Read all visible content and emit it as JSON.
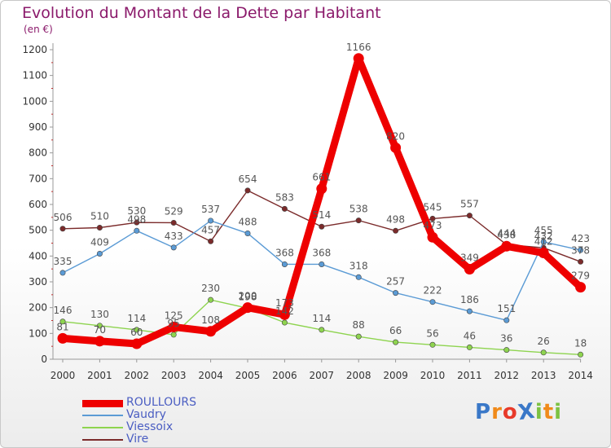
{
  "chart_data": {
    "type": "line",
    "title": "Evolution du Montant de la Dette par Habitant",
    "subtitle": "(en €)",
    "xlabel": "",
    "ylabel": "",
    "x": [
      "2000",
      "2001",
      "2002",
      "2003",
      "2004",
      "2005",
      "2006",
      "2007",
      "2008",
      "2009",
      "2010",
      "2011",
      "2012",
      "2013",
      "2014"
    ],
    "ylim": [
      0,
      1200
    ],
    "yticks": [
      0,
      100,
      200,
      300,
      400,
      500,
      600,
      700,
      800,
      900,
      1000,
      1100,
      1200
    ],
    "grid": false,
    "legend_position": "bottom-left",
    "series": [
      {
        "name": "ROULLOURS",
        "color": "#ee0000",
        "values": [
          81,
          70,
          60,
          125,
          108,
          200,
          173,
          661,
          1166,
          820,
          473,
          349,
          438,
          412,
          279
        ]
      },
      {
        "name": "Vaudry",
        "color": "#5b9bd5",
        "values": [
          335,
          409,
          498,
          433,
          537,
          488,
          368,
          368,
          318,
          257,
          222,
          186,
          151,
          455,
          423
        ]
      },
      {
        "name": "Viessoix",
        "color": "#8ed44f",
        "values": [
          146,
          130,
          114,
          95,
          230,
          198,
          142,
          114,
          88,
          66,
          56,
          46,
          36,
          26,
          18
        ]
      },
      {
        "name": "Vire",
        "color": "#7b2b2b",
        "values": [
          506,
          510,
          530,
          529,
          457,
          654,
          583,
          514,
          538,
          498,
          545,
          557,
          444,
          432,
          378
        ]
      }
    ]
  },
  "logo": {
    "text": "ProXiti",
    "letters": [
      "P",
      "r",
      "o",
      "X",
      "i",
      "t",
      "i"
    ],
    "colors": [
      "#3a78c8",
      "#f08a1a",
      "#e83a2a",
      "#3a78c8",
      "#7cc242",
      "#f08a1a",
      "#7cc242"
    ]
  }
}
